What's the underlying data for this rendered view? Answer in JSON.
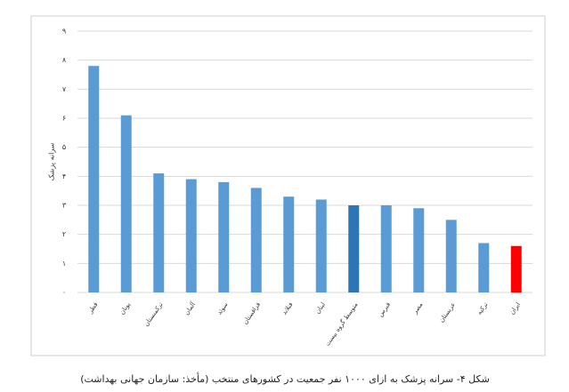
{
  "chart_data": {
    "type": "bar",
    "caption": "شکل ۴- سرانه پزشک به ازای ۱۰۰۰ نفر جمعیت در کشورهای منتخب (مأخذ: سازمان جهانی بهداشت)",
    "y_label": "سرانه پزشک",
    "categories": [
      "قطر",
      "یونان",
      "ترکمنستان",
      "آلمان",
      "سوئد",
      "قزاقستان",
      "فنلاند",
      "لبنان",
      "متوسط گروه بیست",
      "قبرس",
      "مصر",
      "عربستان",
      "ترکیه",
      "ایران"
    ],
    "values": [
      7.8,
      6.1,
      4.1,
      3.9,
      3.8,
      3.6,
      3.3,
      3.2,
      3.0,
      3.0,
      2.9,
      2.5,
      1.7,
      1.6
    ],
    "colors": [
      "#5b9bd5",
      "#5b9bd5",
      "#5b9bd5",
      "#5b9bd5",
      "#5b9bd5",
      "#5b9bd5",
      "#5b9bd5",
      "#5b9bd5",
      "#2e75b6",
      "#5b9bd5",
      "#5b9bd5",
      "#5b9bd5",
      "#5b9bd5",
      "#ff0000"
    ],
    "ylim": [
      0,
      9
    ],
    "yticks": [
      {
        "value": 0,
        "label": "۰"
      },
      {
        "value": 1,
        "label": "۱"
      },
      {
        "value": 2,
        "label": "۲"
      },
      {
        "value": 3,
        "label": "۳"
      },
      {
        "value": 4,
        "label": "۴"
      },
      {
        "value": 5,
        "label": "۵"
      },
      {
        "value": 6,
        "label": "۶"
      },
      {
        "value": 7,
        "label": "۷"
      },
      {
        "value": 8,
        "label": "۸"
      },
      {
        "value": 9,
        "label": "۹"
      }
    ],
    "grid": true
  }
}
